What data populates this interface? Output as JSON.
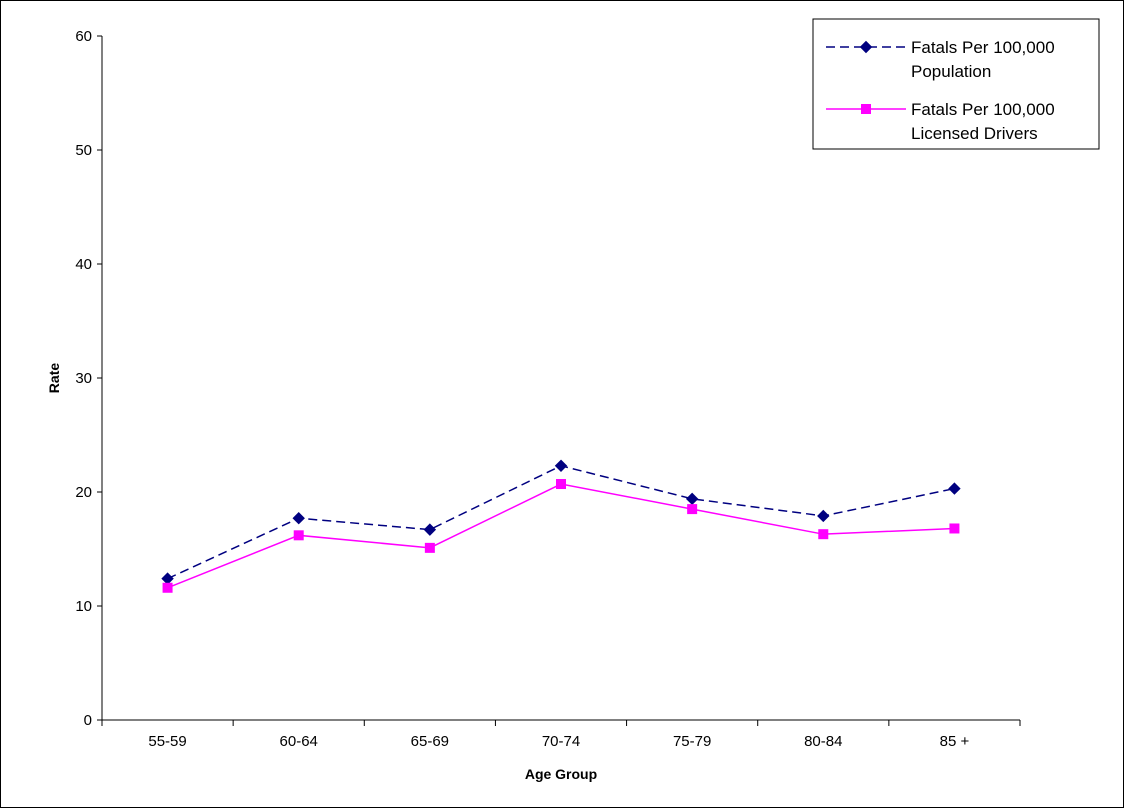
{
  "chart_data": {
    "type": "line",
    "categories": [
      "55-59",
      "60-64",
      "65-69",
      "70-74",
      "75-79",
      "80-84",
      "85 +"
    ],
    "series": [
      {
        "name": "Fatals Per 100,000 Population",
        "name_lines": [
          "Fatals Per 100,000",
          "Population"
        ],
        "values": [
          12.4,
          17.7,
          16.7,
          22.3,
          19.4,
          17.9,
          20.3
        ],
        "color": "#000080",
        "line_style": "dashed",
        "marker": "diamond"
      },
      {
        "name": "Fatals Per 100,000 Licensed Drivers",
        "name_lines": [
          "Fatals Per 100,000",
          "Licensed Drivers"
        ],
        "values": [
          11.6,
          16.2,
          15.1,
          20.7,
          18.5,
          16.3,
          16.8
        ],
        "color": "#ff00ff",
        "line_style": "solid",
        "marker": "square"
      }
    ],
    "xlabel": "Age Group",
    "ylabel": "Rate",
    "ylim": [
      0,
      60
    ],
    "yticks": [
      0,
      10,
      20,
      30,
      40,
      50,
      60
    ],
    "grid": false,
    "legend_position": "top-right"
  }
}
